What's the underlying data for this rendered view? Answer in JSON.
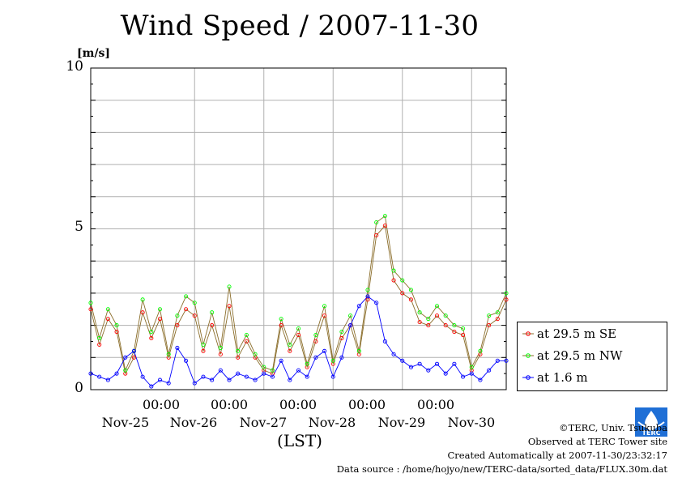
{
  "title": "Wind Speed / 2007-11-30",
  "y_unit": "[m/s]",
  "x_axis_label": "(LST)",
  "colors": {
    "se": "#ff0000",
    "nw": "#00ff00",
    "low": "#0000ff",
    "trace": "#8a6d2a",
    "grid": "#b0b0b0"
  },
  "legend": [
    {
      "label": "at 29.5 m SE",
      "color": "#ff0000"
    },
    {
      "label": "at 29.5 m NW",
      "color": "#00ff00"
    },
    {
      "label": "at 1.6 m",
      "color": "#0000ff"
    }
  ],
  "credits": {
    "copyright": "©TERC, Univ. Tsukuba",
    "observed": "Observed at TERC Tower site",
    "created": "Created Automatically at 2007-11-30/23:32:17",
    "source": "Data source : /home/hojyo/new/TERC-data/sorted_data/FLUX.30m.dat"
  },
  "logo_text": "TERC",
  "chart_data": {
    "type": "line",
    "title": "Wind Speed / 2007-11-30",
    "ylabel": "[m/s]",
    "xlabel": "(LST)",
    "ylim": [
      0,
      10
    ],
    "y_ticks": [
      0,
      5,
      10
    ],
    "x_range_hours": [
      -36,
      108
    ],
    "x_ticks": [
      {
        "hour": 0,
        "time": "00:00",
        "day": "Nov-25"
      },
      {
        "hour": 24,
        "time": "00:00",
        "day": "Nov-26"
      },
      {
        "hour": 48,
        "time": "00:00",
        "day": "Nov-27"
      },
      {
        "hour": 72,
        "time": "00:00",
        "day": "Nov-28"
      },
      {
        "hour": 96,
        "time": "00:00",
        "day": "Nov-29"
      },
      {
        "hour": 120,
        "time": "",
        "day": "Nov-30"
      }
    ],
    "grid": true,
    "legend_position": "right, outside bottom",
    "x_hours": [
      -36,
      -33,
      -30,
      -27,
      -24,
      -21,
      -18,
      -15,
      -12,
      -9,
      -6,
      -3,
      0,
      3,
      6,
      9,
      12,
      15,
      18,
      21,
      24,
      27,
      30,
      33,
      36,
      39,
      42,
      45,
      48,
      51,
      54,
      57,
      60,
      63,
      66,
      69,
      72,
      75,
      78,
      81,
      84,
      87,
      90,
      93,
      96,
      99,
      102,
      105,
      108
    ],
    "series": [
      {
        "name": "at 29.5 m SE",
        "color": "#ff0000",
        "values": [
          2.5,
          1.4,
          2.2,
          1.8,
          0.5,
          1.0,
          2.4,
          1.6,
          2.2,
          1.0,
          2.0,
          2.5,
          2.3,
          1.2,
          2.0,
          1.1,
          2.6,
          1.0,
          1.5,
          1.0,
          0.6,
          0.5,
          2.0,
          1.2,
          1.7,
          0.7,
          1.5,
          2.3,
          0.8,
          1.6,
          2.0,
          1.1,
          2.8,
          4.8,
          5.1,
          3.4,
          3.0,
          2.8,
          2.1,
          2.0,
          2.3,
          2.0,
          1.8,
          1.7,
          0.6,
          1.1,
          2.0,
          2.2,
          2.8
        ]
      },
      {
        "name": "at 29.5 m NW",
        "color": "#00ff00",
        "values": [
          2.7,
          1.6,
          2.5,
          2.0,
          0.6,
          1.2,
          2.8,
          1.8,
          2.5,
          1.1,
          2.3,
          2.9,
          2.7,
          1.4,
          2.4,
          1.3,
          3.2,
          1.2,
          1.7,
          1.1,
          0.7,
          0.6,
          2.2,
          1.4,
          1.9,
          0.8,
          1.7,
          2.6,
          0.9,
          1.8,
          2.3,
          1.2,
          3.1,
          5.2,
          5.4,
          3.7,
          3.4,
          3.1,
          2.4,
          2.2,
          2.6,
          2.3,
          2.0,
          1.9,
          0.7,
          1.2,
          2.3,
          2.4,
          3.0
        ]
      },
      {
        "name": "at 1.6 m",
        "color": "#0000ff",
        "values": [
          0.5,
          0.4,
          0.3,
          0.5,
          1.0,
          1.2,
          0.4,
          0.1,
          0.3,
          0.2,
          1.3,
          0.9,
          0.2,
          0.4,
          0.3,
          0.6,
          0.3,
          0.5,
          0.4,
          0.3,
          0.5,
          0.4,
          0.9,
          0.3,
          0.6,
          0.4,
          1.0,
          1.2,
          0.4,
          1.0,
          2.0,
          2.6,
          2.9,
          2.7,
          1.5,
          1.1,
          0.9,
          0.7,
          0.8,
          0.6,
          0.8,
          0.5,
          0.8,
          0.4,
          0.5,
          0.3,
          0.6,
          0.9,
          0.9
        ]
      }
    ]
  }
}
